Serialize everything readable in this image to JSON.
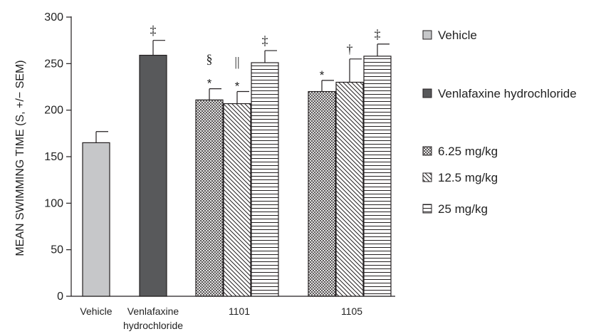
{
  "chart_data": {
    "type": "bar",
    "title": "",
    "ylabel": "MEAN SWIMMING TIME (S, +/− SEM)",
    "xlabel": "",
    "ylim": [
      0,
      300
    ],
    "yticks": [
      0,
      50,
      100,
      150,
      200,
      250,
      300
    ],
    "groups": [
      {
        "label_lines": [
          "Vehicle"
        ],
        "bars": [
          {
            "series": "Vehicle",
            "value": 165,
            "error": 12,
            "marks": []
          }
        ]
      },
      {
        "label_lines": [
          "Venlafaxine",
          "hydrochloride"
        ],
        "bars": [
          {
            "series": "Venlafaxine hydrochloride",
            "value": 259,
            "error": 16,
            "marks": [
              "‡"
            ]
          }
        ]
      },
      {
        "label_lines": [
          "1101"
        ],
        "bars": [
          {
            "series": "6.25 mg/kg",
            "value": 211,
            "error": 12,
            "marks": [
              "*",
              "§"
            ]
          },
          {
            "series": "12.5 mg/kg",
            "value": 207,
            "error": 13,
            "marks": [
              "*",
              "||"
            ]
          },
          {
            "series": "25 mg/kg",
            "value": 251,
            "error": 13,
            "marks": [
              "‡"
            ]
          }
        ]
      },
      {
        "label_lines": [
          "1105"
        ],
        "bars": [
          {
            "series": "6.25 mg/kg",
            "value": 220,
            "error": 12,
            "marks": [
              "*"
            ]
          },
          {
            "series": "12.5 mg/kg",
            "value": 230,
            "error": 25,
            "marks": [
              "†"
            ]
          },
          {
            "series": "25 mg/kg",
            "value": 258,
            "error": 13,
            "marks": [
              "‡"
            ]
          }
        ]
      }
    ],
    "legend": {
      "placement": "right",
      "entries": [
        {
          "name": "Vehicle",
          "pattern": "solid-light"
        },
        {
          "name": "Venlafaxine hydrochloride",
          "pattern": "solid-dark"
        },
        {
          "name": "6.25 mg/kg",
          "pattern": "crosshatch"
        },
        {
          "name": "12.5 mg/kg",
          "pattern": "diagonal"
        },
        {
          "name": "25 mg/kg",
          "pattern": "horizontal"
        }
      ]
    },
    "colors": {
      "vehicle": "#c6c7c9",
      "venlafaxine": "#58595b",
      "stroke": "#231f20"
    }
  }
}
